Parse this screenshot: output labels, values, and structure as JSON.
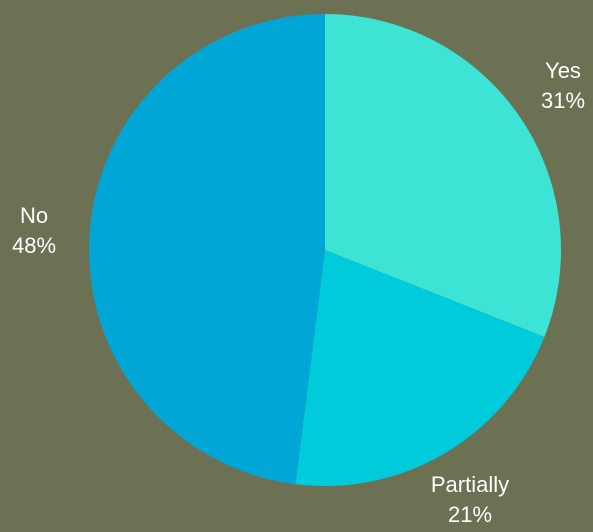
{
  "background_color": "#6b7152",
  "chart_data": {
    "type": "pie",
    "slices": [
      {
        "label": "Yes",
        "percent_label": "31%",
        "value": 31,
        "color": "#3de3d5"
      },
      {
        "label": "Partially",
        "percent_label": "21%",
        "value": 21,
        "color": "#00cbdb"
      },
      {
        "label": "No",
        "percent_label": "48%",
        "value": 48,
        "color": "#00a6d6"
      }
    ],
    "legend": "none",
    "start_angle": "top",
    "direction": "clockwise"
  }
}
